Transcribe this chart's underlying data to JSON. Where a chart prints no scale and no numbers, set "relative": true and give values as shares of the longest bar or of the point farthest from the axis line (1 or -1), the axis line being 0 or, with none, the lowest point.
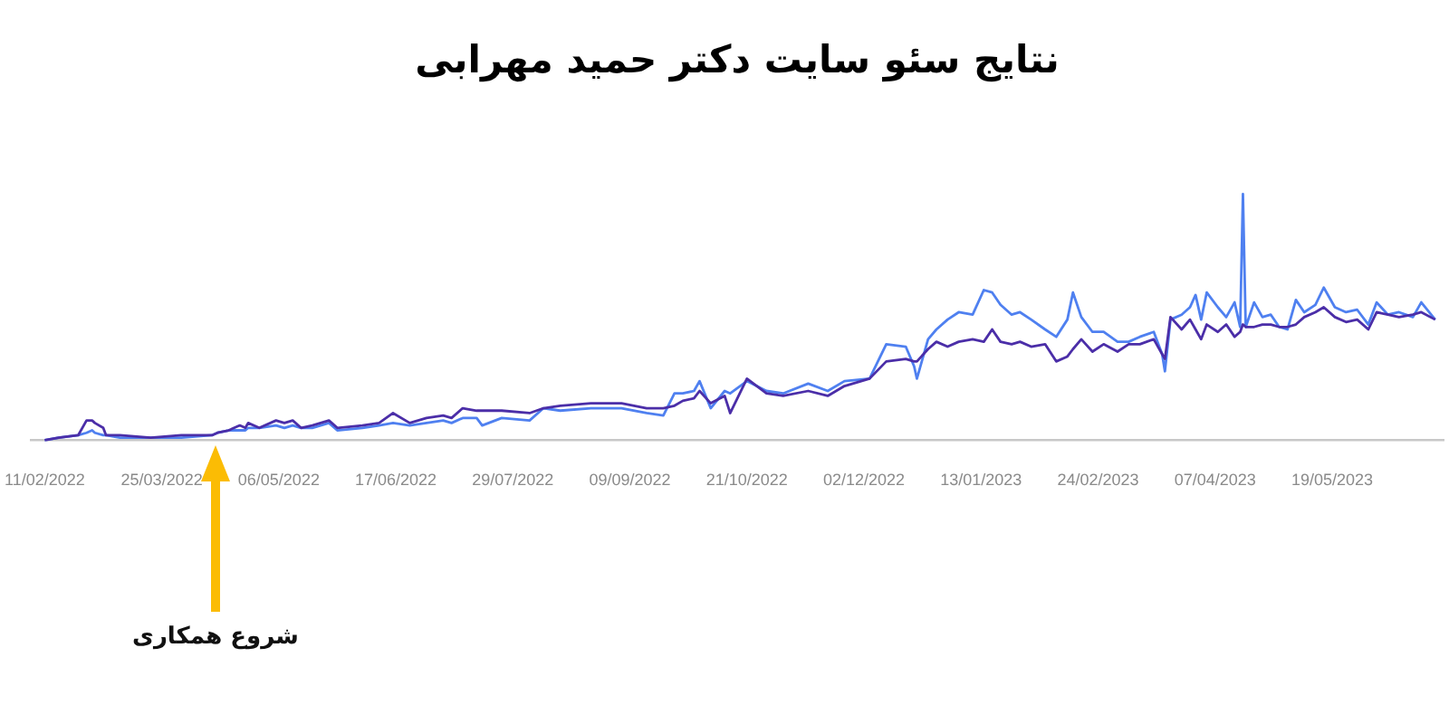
{
  "chart_data": {
    "type": "line",
    "title": "نتایج سئو سایت دکتر حمید مهرابی",
    "x": [
      "2022-02-11",
      "2022-02-16",
      "2022-02-23",
      "2022-02-26",
      "2022-02-28",
      "2022-03-01",
      "2022-03-04",
      "2022-03-05",
      "2022-03-10",
      "2022-03-21",
      "2022-04-01",
      "2022-04-12",
      "2022-04-14",
      "2022-04-18",
      "2022-04-22",
      "2022-04-24",
      "2022-04-25",
      "2022-04-29",
      "2022-05-05",
      "2022-05-08",
      "2022-05-11",
      "2022-05-14",
      "2022-05-18",
      "2022-05-24",
      "2022-05-27",
      "2022-06-05",
      "2022-06-11",
      "2022-06-16",
      "2022-06-22",
      "2022-06-28",
      "2022-07-04",
      "2022-07-07",
      "2022-07-11",
      "2022-07-16",
      "2022-07-18",
      "2022-07-25",
      "2022-08-04",
      "2022-08-09",
      "2022-08-15",
      "2022-08-26",
      "2022-09-06",
      "2022-09-15",
      "2022-09-21",
      "2022-09-25",
      "2022-09-28",
      "2022-10-02",
      "2022-10-04",
      "2022-10-08",
      "2022-10-13",
      "2022-10-15",
      "2022-10-21",
      "2022-10-28",
      "2022-11-03",
      "2022-11-12",
      "2022-11-19",
      "2022-11-25",
      "2022-12-04",
      "2022-12-10",
      "2022-12-17",
      "2022-12-20",
      "2022-12-21",
      "2022-12-25",
      "2022-12-28",
      "2023-01-01",
      "2023-01-05",
      "2023-01-10",
      "2023-01-14",
      "2023-01-17",
      "2023-01-20",
      "2023-01-24",
      "2023-01-27",
      "2023-01-31",
      "2023-02-05",
      "2023-02-09",
      "2023-02-13",
      "2023-02-15",
      "2023-02-18",
      "2023-02-22",
      "2023-02-26",
      "2023-03-03",
      "2023-03-07",
      "2023-03-11",
      "2023-03-16",
      "2023-03-19",
      "2023-03-20",
      "2023-03-22",
      "2023-03-26",
      "2023-03-29",
      "2023-03-31",
      "2023-04-02",
      "2023-04-04",
      "2023-04-08",
      "2023-04-11",
      "2023-04-14",
      "2023-04-16",
      "2023-04-17",
      "2023-04-18",
      "2023-04-21",
      "2023-04-24",
      "2023-04-27",
      "2023-04-30",
      "2023-05-03",
      "2023-05-06",
      "2023-05-09",
      "2023-05-13",
      "2023-05-16",
      "2023-05-20",
      "2023-05-24",
      "2023-05-28",
      "2023-06-01",
      "2023-06-04",
      "2023-06-08",
      "2023-06-12",
      "2023-06-17",
      "2023-06-20",
      "2023-06-25"
    ],
    "series": [
      {
        "color": "#4b2ea8",
        "values": [
          0,
          0.01,
          0.02,
          0.08,
          0.08,
          0.07,
          0.05,
          0.02,
          0.02,
          0.01,
          0.02,
          0.02,
          0.03,
          0.04,
          0.06,
          0.05,
          0.07,
          0.05,
          0.08,
          0.07,
          0.08,
          0.05,
          0.06,
          0.08,
          0.05,
          0.06,
          0.07,
          0.11,
          0.07,
          0.09,
          0.1,
          0.09,
          0.13,
          0.12,
          0.12,
          0.12,
          0.11,
          0.13,
          0.14,
          0.15,
          0.15,
          0.13,
          0.13,
          0.14,
          0.16,
          0.17,
          0.2,
          0.15,
          0.18,
          0.11,
          0.25,
          0.19,
          0.18,
          0.2,
          0.18,
          0.22,
          0.25,
          0.32,
          0.33,
          0.32,
          0.32,
          0.37,
          0.4,
          0.38,
          0.4,
          0.41,
          0.4,
          0.45,
          0.4,
          0.39,
          0.4,
          0.38,
          0.39,
          0.32,
          0.34,
          0.37,
          0.41,
          0.36,
          0.39,
          0.36,
          0.39,
          0.39,
          0.41,
          0.35,
          0.33,
          0.5,
          0.45,
          0.49,
          0.45,
          0.41,
          0.47,
          0.44,
          0.47,
          0.42,
          0.44,
          0.47,
          0.46,
          0.46,
          0.47,
          0.47,
          0.46,
          0.46,
          0.47,
          0.5,
          0.52,
          0.54,
          0.5,
          0.48,
          0.49,
          0.45,
          0.52,
          0.51,
          0.5,
          0.51,
          0.52,
          0.49
        ]
      },
      {
        "color": "#4f80f0",
        "values": [
          0,
          0.01,
          0.02,
          0.03,
          0.04,
          0.03,
          0.02,
          0.02,
          0.01,
          0.01,
          0.01,
          0.02,
          0.03,
          0.04,
          0.04,
          0.04,
          0.05,
          0.05,
          0.06,
          0.05,
          0.06,
          0.05,
          0.05,
          0.07,
          0.04,
          0.05,
          0.06,
          0.07,
          0.06,
          0.07,
          0.08,
          0.07,
          0.09,
          0.09,
          0.06,
          0.09,
          0.08,
          0.13,
          0.12,
          0.13,
          0.13,
          0.11,
          0.1,
          0.19,
          0.19,
          0.2,
          0.24,
          0.13,
          0.2,
          0.19,
          0.24,
          0.2,
          0.19,
          0.23,
          0.2,
          0.24,
          0.25,
          0.39,
          0.38,
          0.3,
          0.25,
          0.41,
          0.45,
          0.49,
          0.52,
          0.51,
          0.61,
          0.6,
          0.55,
          0.51,
          0.52,
          0.49,
          0.45,
          0.42,
          0.49,
          0.6,
          0.5,
          0.44,
          0.44,
          0.4,
          0.4,
          0.42,
          0.44,
          0.35,
          0.28,
          0.49,
          0.51,
          0.54,
          0.59,
          0.49,
          0.6,
          0.54,
          0.5,
          0.56,
          0.46,
          1,
          0.46,
          0.56,
          0.5,
          0.51,
          0.46,
          0.45,
          0.57,
          0.52,
          0.55,
          0.62,
          0.54,
          0.52,
          0.53,
          0.47,
          0.56,
          0.51,
          0.52,
          0.5,
          0.56,
          0.49
        ]
      }
    ],
    "relative": true,
    "xlim": [
      "2022-02-06",
      "2023-06-28"
    ],
    "xticks": [
      {
        "value": "2022-02-11",
        "label": "11/02/2022"
      },
      {
        "value": "2022-03-25",
        "label": "25/03/2022"
      },
      {
        "value": "2022-05-06",
        "label": "06/05/2022"
      },
      {
        "value": "2022-06-17",
        "label": "17/06/2022"
      },
      {
        "value": "2022-07-29",
        "label": "29/07/2022"
      },
      {
        "value": "2022-09-09",
        "label": "09/09/2022"
      },
      {
        "value": "2022-10-21",
        "label": "21/10/2022"
      },
      {
        "value": "2022-12-02",
        "label": "02/12/2022"
      },
      {
        "value": "2023-01-13",
        "label": "13/01/2023"
      },
      {
        "value": "2023-02-24",
        "label": "24/02/2023"
      },
      {
        "value": "2023-04-07",
        "label": "07/04/2023"
      },
      {
        "value": "2023-05-19",
        "label": "19/05/2023"
      }
    ],
    "marker": "none",
    "tick_labels": "x",
    "annotations": [
      "شروع همکاری"
    ]
  }
}
